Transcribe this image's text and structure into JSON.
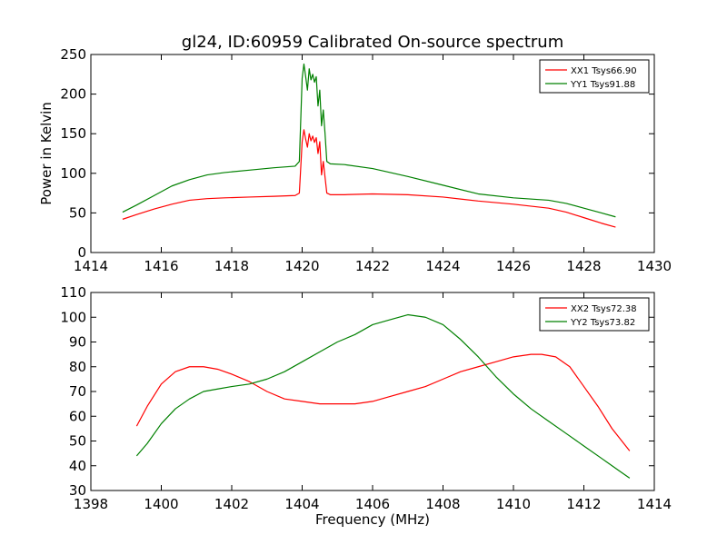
{
  "chart_data": [
    {
      "type": "line",
      "title": "gl24, ID:60959 Calibrated On-source spectrum",
      "xlabel": "",
      "ylabel": "Power in Kelvin",
      "xlim": [
        1414,
        1430
      ],
      "ylim": [
        0,
        250
      ],
      "xticks": [
        1414,
        1416,
        1418,
        1420,
        1422,
        1424,
        1426,
        1428,
        1430
      ],
      "yticks": [
        0,
        50,
        100,
        150,
        200,
        250
      ],
      "grid": false,
      "legend": "top-right",
      "series": [
        {
          "name": "XX1 Tsys66.90",
          "color": "#ff0000",
          "x": [
            1414.9,
            1415.3,
            1415.8,
            1416.3,
            1416.8,
            1417.3,
            1417.8,
            1418.5,
            1419.2,
            1419.8,
            1419.92,
            1420.0,
            1420.05,
            1420.1,
            1420.15,
            1420.2,
            1420.25,
            1420.3,
            1420.35,
            1420.4,
            1420.45,
            1420.5,
            1420.55,
            1420.6,
            1420.65,
            1420.7,
            1420.8,
            1421.2,
            1422.0,
            1423.0,
            1424.0,
            1425.0,
            1426.0,
            1427.0,
            1427.5,
            1428.0,
            1428.5,
            1428.9
          ],
          "values": [
            42,
            48,
            55,
            61,
            66,
            68,
            69,
            70,
            71,
            72,
            75,
            140,
            155,
            143,
            133,
            150,
            141,
            147,
            139,
            145,
            125,
            140,
            98,
            115,
            95,
            75,
            73,
            73,
            74,
            73,
            70,
            65,
            61,
            56,
            51,
            44,
            37,
            32
          ]
        },
        {
          "name": "YY1 Tsys91.88",
          "color": "#008000",
          "x": [
            1414.9,
            1415.3,
            1415.8,
            1416.3,
            1416.8,
            1417.3,
            1417.8,
            1418.5,
            1419.2,
            1419.8,
            1419.92,
            1420.0,
            1420.05,
            1420.1,
            1420.15,
            1420.2,
            1420.25,
            1420.3,
            1420.35,
            1420.4,
            1420.45,
            1420.5,
            1420.55,
            1420.6,
            1420.65,
            1420.7,
            1420.8,
            1421.2,
            1422.0,
            1423.0,
            1424.0,
            1425.0,
            1426.0,
            1427.0,
            1427.5,
            1428.0,
            1428.5,
            1428.9
          ],
          "values": [
            51,
            60,
            72,
            84,
            92,
            98,
            101,
            104,
            107,
            109,
            115,
            220,
            238,
            222,
            205,
            232,
            218,
            225,
            215,
            222,
            185,
            205,
            160,
            180,
            150,
            115,
            112,
            111,
            106,
            96,
            85,
            74,
            69,
            66,
            62,
            56,
            50,
            45
          ]
        }
      ]
    },
    {
      "type": "line",
      "title": "",
      "xlabel": "Frequency (MHz)",
      "ylabel": "",
      "xlim": [
        1398,
        1414
      ],
      "ylim": [
        30,
        110
      ],
      "xticks": [
        1398,
        1400,
        1402,
        1404,
        1406,
        1408,
        1410,
        1412,
        1414
      ],
      "yticks": [
        30,
        40,
        50,
        60,
        70,
        80,
        90,
        100,
        110
      ],
      "grid": false,
      "legend": "top-right",
      "series": [
        {
          "name": "XX2 Tsys72.38",
          "color": "#ff0000",
          "x": [
            1399.3,
            1399.6,
            1400.0,
            1400.4,
            1400.8,
            1401.2,
            1401.6,
            1402.0,
            1402.5,
            1403.0,
            1403.5,
            1404.0,
            1404.5,
            1405.0,
            1405.5,
            1406.0,
            1406.5,
            1407.0,
            1407.5,
            1408.0,
            1408.5,
            1409.0,
            1409.5,
            1410.0,
            1410.5,
            1410.8,
            1411.2,
            1411.6,
            1412.0,
            1412.4,
            1412.8,
            1413.3
          ],
          "values": [
            56,
            64,
            73,
            78,
            80,
            80,
            79,
            77,
            74,
            70,
            67,
            66,
            65,
            65,
            65,
            66,
            68,
            70,
            72,
            75,
            78,
            80,
            82,
            84,
            85,
            85,
            84,
            80,
            72,
            64,
            55,
            46
          ]
        },
        {
          "name": "YY2 Tsys73.82",
          "color": "#008000",
          "x": [
            1399.3,
            1399.6,
            1400.0,
            1400.4,
            1400.8,
            1401.2,
            1401.6,
            1402.0,
            1402.5,
            1403.0,
            1403.5,
            1404.0,
            1404.5,
            1405.0,
            1405.5,
            1406.0,
            1406.5,
            1407.0,
            1407.5,
            1408.0,
            1408.5,
            1409.0,
            1409.5,
            1410.0,
            1410.5,
            1411.0,
            1411.5,
            1412.0,
            1412.5,
            1413.0,
            1413.3
          ],
          "values": [
            44,
            49,
            57,
            63,
            67,
            70,
            71,
            72,
            73,
            75,
            78,
            82,
            86,
            90,
            93,
            97,
            99,
            101,
            100,
            97,
            91,
            84,
            76,
            69,
            63,
            58,
            53,
            48,
            43,
            38,
            35
          ]
        }
      ]
    }
  ]
}
